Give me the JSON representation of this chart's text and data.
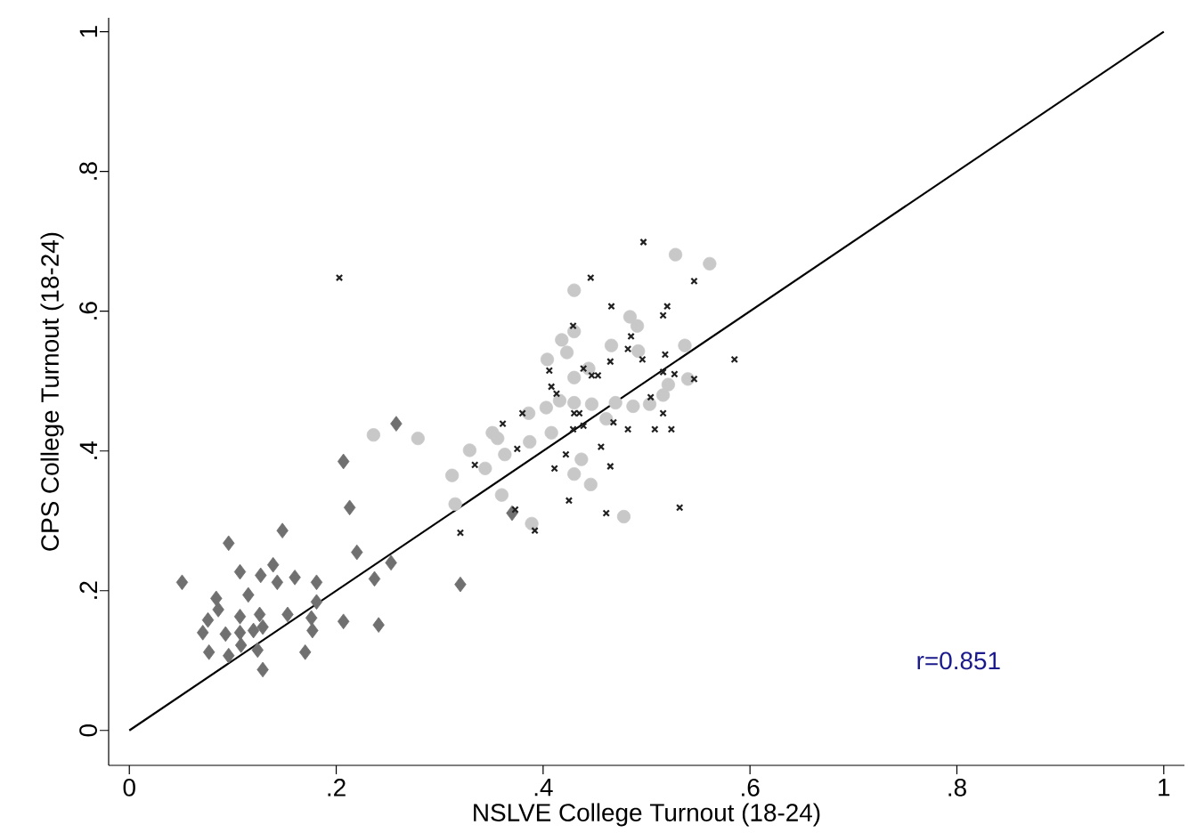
{
  "chart_data": {
    "type": "scatter",
    "xlabel": "NSLVE College Turnout (18-24)",
    "ylabel": "CPS College Turnout (18-24)",
    "xlim": [
      -0.02,
      1.02
    ],
    "ylim": [
      -0.05,
      1.02
    ],
    "xticks": [
      0,
      {
        "value": 0.2,
        "label": ".2"
      },
      {
        "value": 0.4,
        "label": ".4"
      },
      {
        "value": 0.6,
        "label": ".6"
      },
      {
        "value": 0.8,
        "label": ".8"
      },
      1
    ],
    "yticks": [
      0,
      {
        "value": 0.2,
        "label": ".2"
      },
      {
        "value": 0.4,
        "label": ".4"
      },
      {
        "value": 0.6,
        "label": ".6"
      },
      {
        "value": 0.8,
        "label": ".8"
      },
      1
    ],
    "grid": false,
    "annotations": [
      "r=0.851"
    ],
    "series": [
      {
        "color": "#707070",
        "marker": "diamond",
        "x": [
          0.051,
          0.096,
          0.148,
          0.107,
          0.127,
          0.139,
          0.143,
          0.16,
          0.115,
          0.084,
          0.086,
          0.076,
          0.107,
          0.126,
          0.129,
          0.153,
          0.181,
          0.181,
          0.176,
          0.177,
          0.071,
          0.093,
          0.107,
          0.12,
          0.108,
          0.077,
          0.096,
          0.124,
          0.129,
          0.17,
          0.207,
          0.241,
          0.22,
          0.237,
          0.253,
          0.213,
          0.207,
          0.258,
          0.32,
          0.37
        ],
        "values": [
          0.212,
          0.268,
          0.286,
          0.227,
          0.222,
          0.237,
          0.212,
          0.219,
          0.194,
          0.189,
          0.173,
          0.158,
          0.163,
          0.166,
          0.148,
          0.166,
          0.212,
          0.184,
          0.161,
          0.143,
          0.14,
          0.138,
          0.14,
          0.143,
          0.122,
          0.112,
          0.107,
          0.115,
          0.087,
          0.112,
          0.156,
          0.151,
          0.255,
          0.217,
          0.24,
          0.319,
          0.385,
          0.439,
          0.209,
          0.311
        ]
      },
      {
        "color": "#c8c8c8",
        "marker": "circle",
        "x": [
          0.236,
          0.279,
          0.329,
          0.312,
          0.344,
          0.351,
          0.363,
          0.36,
          0.315,
          0.43,
          0.418,
          0.404,
          0.423,
          0.43,
          0.444,
          0.386,
          0.403,
          0.416,
          0.43,
          0.447,
          0.356,
          0.387,
          0.408,
          0.437,
          0.43,
          0.446,
          0.389,
          0.528,
          0.561,
          0.484,
          0.491,
          0.43,
          0.466,
          0.537,
          0.492,
          0.54,
          0.521,
          0.516,
          0.47,
          0.487,
          0.503,
          0.461,
          0.478
        ],
        "values": [
          0.423,
          0.418,
          0.401,
          0.365,
          0.375,
          0.426,
          0.395,
          0.337,
          0.324,
          0.63,
          0.559,
          0.531,
          0.541,
          0.505,
          0.518,
          0.454,
          0.462,
          0.472,
          0.469,
          0.467,
          0.418,
          0.413,
          0.426,
          0.388,
          0.367,
          0.352,
          0.296,
          0.681,
          0.668,
          0.592,
          0.579,
          0.571,
          0.551,
          0.551,
          0.543,
          0.503,
          0.495,
          0.48,
          0.469,
          0.464,
          0.467,
          0.446,
          0.306
        ]
      },
      {
        "color": "#202020",
        "marker": "cross",
        "x": [
          0.203,
          0.446,
          0.429,
          0.406,
          0.408,
          0.413,
          0.38,
          0.361,
          0.375,
          0.334,
          0.32,
          0.373,
          0.392,
          0.422,
          0.411,
          0.425,
          0.43,
          0.435,
          0.439,
          0.447,
          0.453,
          0.456,
          0.497,
          0.546,
          0.466,
          0.52,
          0.516,
          0.485,
          0.482,
          0.496,
          0.518,
          0.465,
          0.585,
          0.516,
          0.527,
          0.546,
          0.504,
          0.516,
          0.468,
          0.482,
          0.508,
          0.524,
          0.429,
          0.439,
          0.465,
          0.461,
          0.532
        ],
        "values": [
          0.648,
          0.648,
          0.579,
          0.515,
          0.492,
          0.482,
          0.454,
          0.439,
          0.403,
          0.38,
          0.283,
          0.316,
          0.286,
          0.395,
          0.375,
          0.329,
          0.454,
          0.454,
          0.518,
          0.508,
          0.508,
          0.406,
          0.699,
          0.643,
          0.607,
          0.607,
          0.594,
          0.564,
          0.546,
          0.531,
          0.538,
          0.528,
          0.531,
          0.513,
          0.51,
          0.503,
          0.477,
          0.454,
          0.441,
          0.431,
          0.431,
          0.431,
          0.431,
          0.436,
          0.378,
          0.311,
          0.319
        ]
      },
      {
        "type": "line",
        "color": "#000000",
        "marker": "none",
        "x": [
          0,
          1
        ],
        "values": [
          0,
          1
        ]
      }
    ]
  }
}
